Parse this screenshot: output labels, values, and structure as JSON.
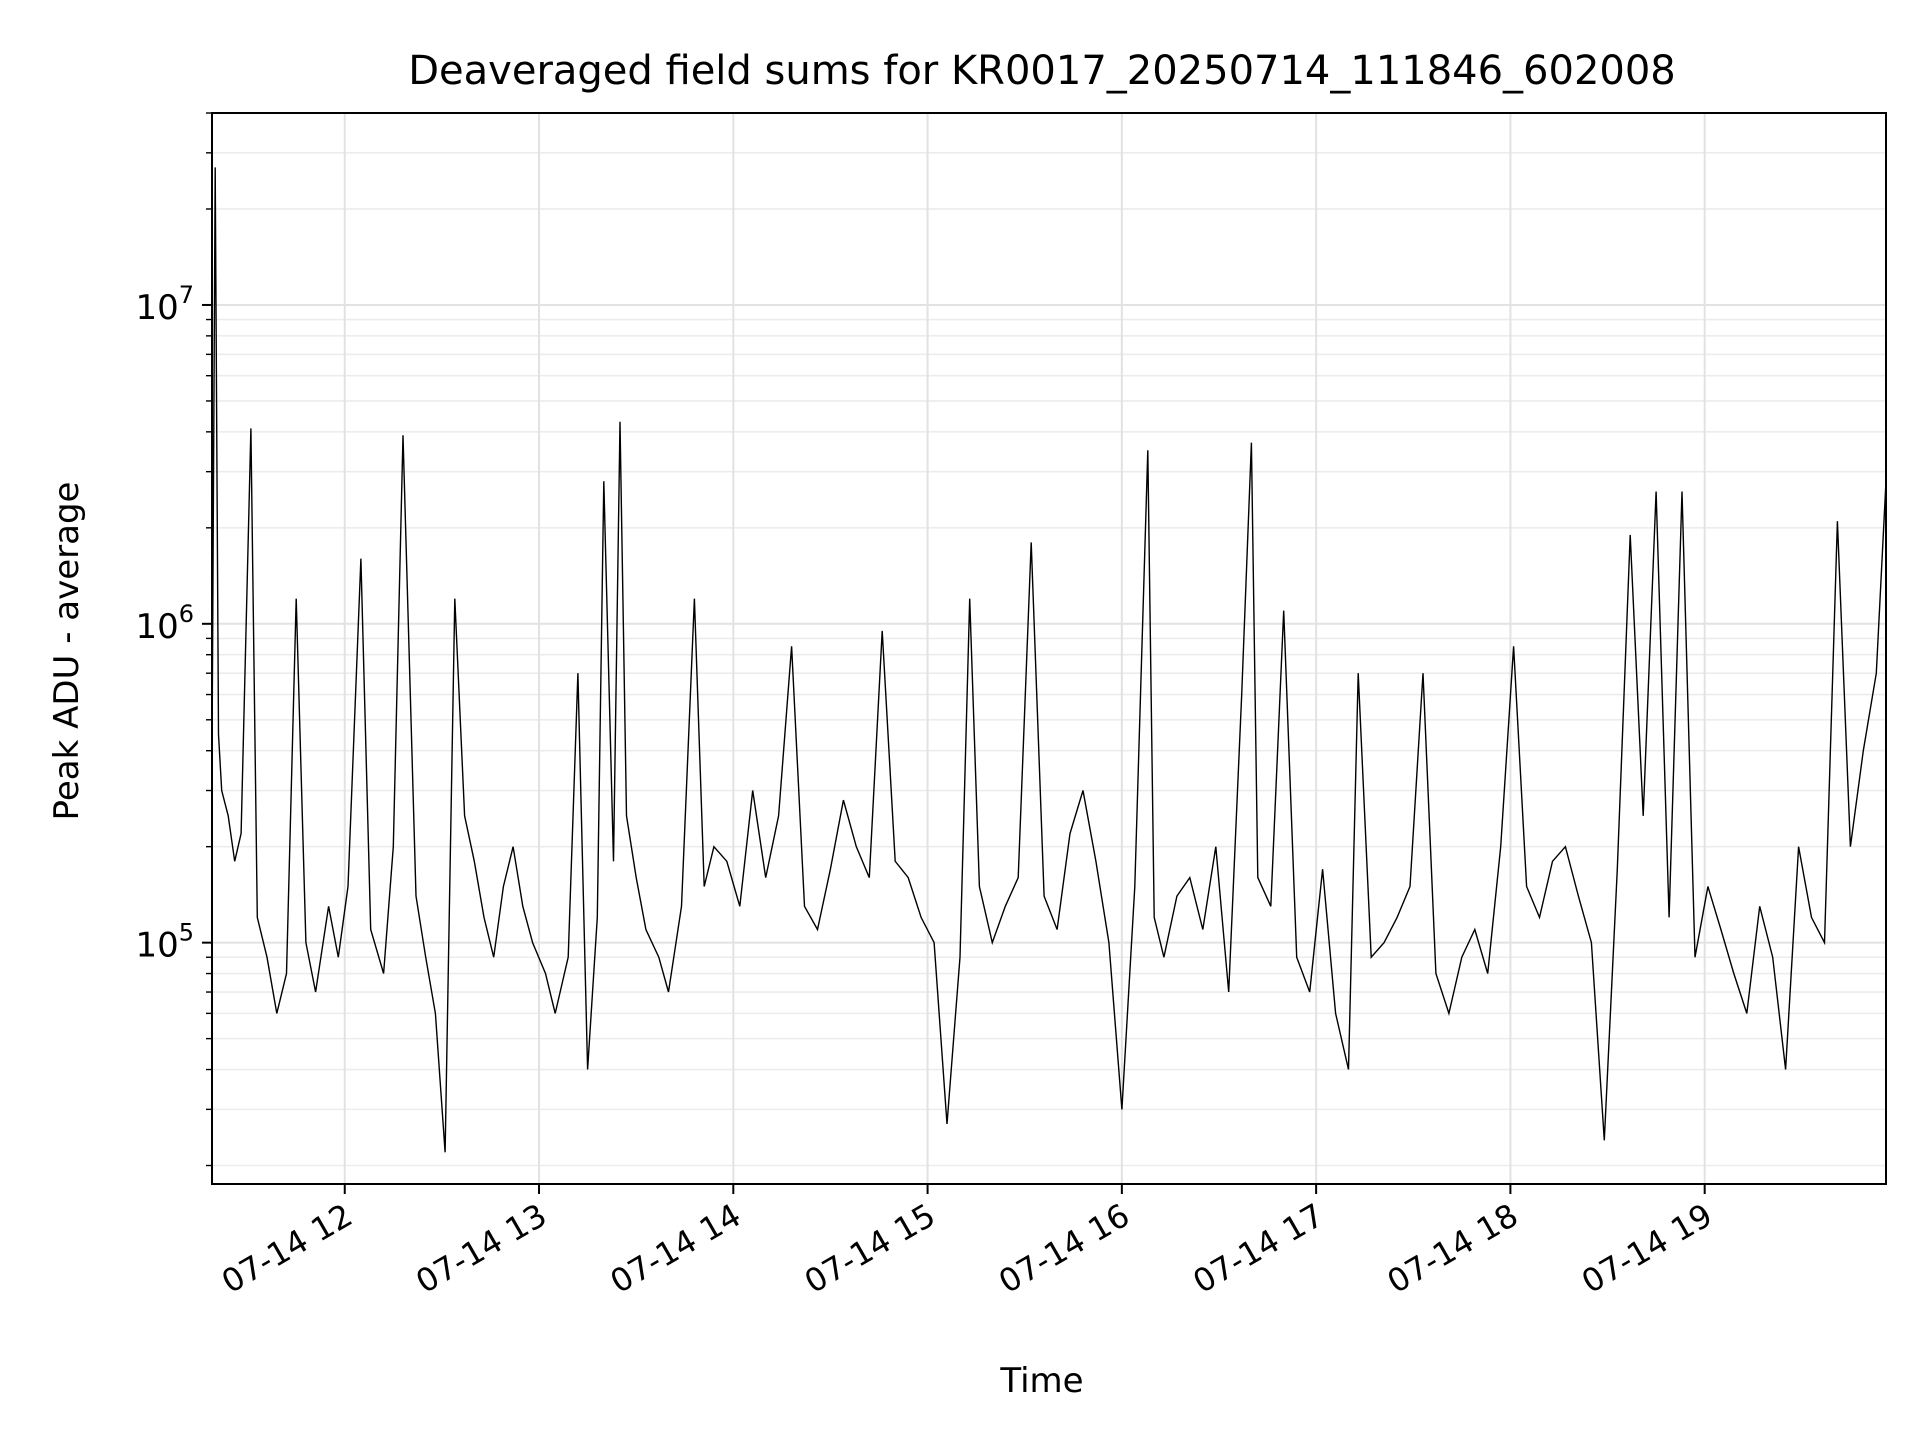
{
  "chart_data": {
    "type": "line",
    "title": "Deaveraged field sums for KR0017_20250714_111846_602008",
    "xlabel": "Time",
    "ylabel": "Peak ADU - average",
    "yscale": "log",
    "grid": true,
    "grid_minor": true,
    "line_color": "#000000",
    "xlim": [
      "07-14 11:19",
      "07-14 19:56"
    ],
    "ylim": [
      17500,
      40000000
    ],
    "xticks": [
      {
        "value": "07-14 12:00",
        "label": "07-14 12"
      },
      {
        "value": "07-14 13:00",
        "label": "07-14 13"
      },
      {
        "value": "07-14 14:00",
        "label": "07-14 14"
      },
      {
        "value": "07-14 15:00",
        "label": "07-14 15"
      },
      {
        "value": "07-14 16:00",
        "label": "07-14 16"
      },
      {
        "value": "07-14 17:00",
        "label": "07-14 17"
      },
      {
        "value": "07-14 18:00",
        "label": "07-14 18"
      },
      {
        "value": "07-14 19:00",
        "label": "07-14 19"
      }
    ],
    "yticks": [
      {
        "value": 100000,
        "base": "10",
        "exp": "5"
      },
      {
        "value": 1000000,
        "base": "10",
        "exp": "6"
      },
      {
        "value": 10000000,
        "base": "10",
        "exp": "7"
      }
    ],
    "series": [
      {
        "x": [
          "07-14 11:19",
          "07-14 11:20",
          "07-14 11:21",
          "07-14 11:22",
          "07-14 11:24",
          "07-14 11:26",
          "07-14 11:28",
          "07-14 11:31",
          "07-14 11:33",
          "07-14 11:36",
          "07-14 11:39",
          "07-14 11:42",
          "07-14 11:45",
          "07-14 11:48",
          "07-14 11:51",
          "07-14 11:55",
          "07-14 11:58",
          "07-14 12:01",
          "07-14 12:05",
          "07-14 12:08",
          "07-14 12:12",
          "07-14 12:15",
          "07-14 12:18",
          "07-14 12:22",
          "07-14 12:25",
          "07-14 12:28",
          "07-14 12:31",
          "07-14 12:34",
          "07-14 12:37",
          "07-14 12:40",
          "07-14 12:43",
          "07-14 12:46",
          "07-14 12:49",
          "07-14 12:52",
          "07-14 12:55",
          "07-14 12:58",
          "07-14 13:02",
          "07-14 13:05",
          "07-14 13:09",
          "07-14 13:12",
          "07-14 13:15",
          "07-14 13:18",
          "07-14 13:20",
          "07-14 13:23",
          "07-14 13:25",
          "07-14 13:27",
          "07-14 13:30",
          "07-14 13:33",
          "07-14 13:37",
          "07-14 13:40",
          "07-14 13:44",
          "07-14 13:48",
          "07-14 13:51",
          "07-14 13:54",
          "07-14 13:58",
          "07-14 14:02",
          "07-14 14:06",
          "07-14 14:10",
          "07-14 14:14",
          "07-14 14:18",
          "07-14 14:22",
          "07-14 14:26",
          "07-14 14:30",
          "07-14 14:34",
          "07-14 14:38",
          "07-14 14:42",
          "07-14 14:46",
          "07-14 14:50",
          "07-14 14:54",
          "07-14 14:58",
          "07-14 15:02",
          "07-14 15:06",
          "07-14 15:10",
          "07-14 15:13",
          "07-14 15:16",
          "07-14 15:20",
          "07-14 15:24",
          "07-14 15:28",
          "07-14 15:32",
          "07-14 15:36",
          "07-14 15:40",
          "07-14 15:44",
          "07-14 15:48",
          "07-14 15:52",
          "07-14 15:56",
          "07-14 16:00",
          "07-14 16:04",
          "07-14 16:08",
          "07-14 16:10",
          "07-14 16:13",
          "07-14 16:17",
          "07-14 16:21",
          "07-14 16:25",
          "07-14 16:29",
          "07-14 16:33",
          "07-14 16:37",
          "07-14 16:40",
          "07-14 16:42",
          "07-14 16:46",
          "07-14 16:50",
          "07-14 16:54",
          "07-14 16:58",
          "07-14 17:02",
          "07-14 17:06",
          "07-14 17:10",
          "07-14 17:13",
          "07-14 17:17",
          "07-14 17:21",
          "07-14 17:25",
          "07-14 17:29",
          "07-14 17:33",
          "07-14 17:37",
          "07-14 17:41",
          "07-14 17:45",
          "07-14 17:49",
          "07-14 17:53",
          "07-14 17:57",
          "07-14 18:01",
          "07-14 18:05",
          "07-14 18:09",
          "07-14 18:13",
          "07-14 18:17",
          "07-14 18:21",
          "07-14 18:25",
          "07-14 18:29",
          "07-14 18:33",
          "07-14 18:37",
          "07-14 18:41",
          "07-14 18:45",
          "07-14 18:49",
          "07-14 18:53",
          "07-14 18:57",
          "07-14 19:01",
          "07-14 19:05",
          "07-14 19:09",
          "07-14 19:13",
          "07-14 19:17",
          "07-14 19:21",
          "07-14 19:25",
          "07-14 19:29",
          "07-14 19:33",
          "07-14 19:37",
          "07-14 19:41",
          "07-14 19:45",
          "07-14 19:49",
          "07-14 19:53",
          "07-14 19:56"
        ],
        "y": [
          380000,
          27000000,
          450000,
          300000,
          250000,
          180000,
          220000,
          4100000,
          120000,
          90000,
          60000,
          80000,
          1200000,
          100000,
          70000,
          130000,
          90000,
          150000,
          1600000,
          110000,
          80000,
          200000,
          3900000,
          140000,
          90000,
          60000,
          22000,
          1200000,
          250000,
          180000,
          120000,
          90000,
          150000,
          200000,
          130000,
          100000,
          80000,
          60000,
          90000,
          700000,
          40000,
          120000,
          2800000,
          180000,
          4300000,
          250000,
          160000,
          110000,
          90000,
          70000,
          130000,
          1200000,
          150000,
          200000,
          180000,
          130000,
          300000,
          160000,
          250000,
          850000,
          130000,
          110000,
          170000,
          280000,
          200000,
          160000,
          950000,
          180000,
          160000,
          120000,
          100000,
          27000,
          90000,
          1200000,
          150000,
          100000,
          130000,
          160000,
          1800000,
          140000,
          110000,
          220000,
          300000,
          180000,
          100000,
          30000,
          150000,
          3500000,
          120000,
          90000,
          140000,
          160000,
          110000,
          200000,
          70000,
          600000,
          3700000,
          160000,
          130000,
          1100000,
          90000,
          70000,
          170000,
          60000,
          40000,
          700000,
          90000,
          100000,
          120000,
          150000,
          700000,
          80000,
          60000,
          90000,
          110000,
          80000,
          200000,
          850000,
          150000,
          120000,
          180000,
          200000,
          140000,
          100000,
          24000,
          170000,
          1900000,
          250000,
          2600000,
          120000,
          2600000,
          90000,
          150000,
          110000,
          80000,
          60000,
          130000,
          90000,
          40000,
          200000,
          120000,
          100000,
          2100000,
          200000,
          400000,
          700000,
          2800000
        ]
      }
    ]
  }
}
